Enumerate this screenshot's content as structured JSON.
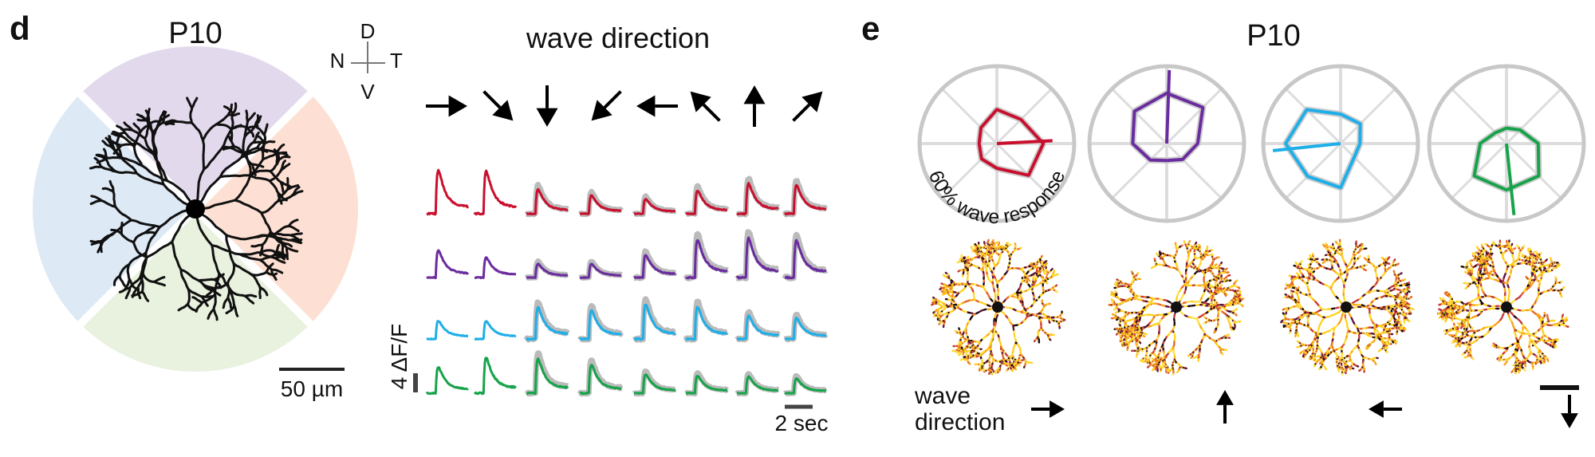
{
  "panel_d": {
    "letter": "d",
    "title": "P10",
    "compass": {
      "dorsal": "D",
      "nasal": "N",
      "temporal": "T",
      "ventral": "V"
    },
    "scale_bar_label": "50 µm",
    "wave_direction_title": "wave direction",
    "y_scale_label": "4 ΔF/F",
    "x_scale_label": "2 sec"
  },
  "panel_e": {
    "letter": "e",
    "title": "P10",
    "polar_label": "60% wave response",
    "wave_direction_label_line1": "wave",
    "wave_direction_label_line2": "direction"
  },
  "colors": {
    "temporal": "#c8102e",
    "dorsal": "#6a2c9e",
    "nasal": "#1eaee8",
    "ventral": "#17a34a",
    "wedge_dorsal": "#e3d9ec",
    "wedge_temporal": "#fde0d3",
    "wedge_ventral": "#e9f1df",
    "wedge_nasal": "#dde9f5"
  },
  "chart_data": [
    {
      "type": "line",
      "title": "wave direction",
      "directions": [
        "right",
        "down-right",
        "down",
        "down-left",
        "left",
        "up-left",
        "up",
        "up-right"
      ],
      "y_scale": {
        "value": 4,
        "unit": "ΔF/F"
      },
      "x_scale": {
        "value": 2,
        "unit": "sec"
      },
      "series": [
        {
          "name": "temporal",
          "color_key": "temporal",
          "peaks": [
            11.8,
            11.6,
            6.6,
            5.0,
            4.0,
            6.3,
            8.2,
            7.7
          ]
        },
        {
          "name": "dorsal",
          "color_key": "dorsal",
          "peaks": [
            7.3,
            5.4,
            3.7,
            3.7,
            6.1,
            10.3,
            10.7,
            10.1
          ]
        },
        {
          "name": "nasal",
          "color_key": "nasal",
          "peaks": [
            4.9,
            4.9,
            8.6,
            7.8,
            9.4,
            8.7,
            6.3,
            5.7
          ]
        },
        {
          "name": "ventral",
          "color_key": "ventral",
          "peaks": [
            7.1,
            9.7,
            9.4,
            7.7,
            5.1,
            4.7,
            4.5,
            4.0
          ]
        }
      ]
    },
    {
      "type": "polar",
      "title": "P10",
      "ring_label": "60% wave response",
      "angle_order": [
        "up",
        "up-right",
        "right",
        "down-right",
        "down",
        "down-left",
        "left",
        "up-left"
      ],
      "series": [
        {
          "name": "temporal",
          "color_key": "temporal",
          "radii": [
            0.44,
            0.44,
            0.6,
            0.58,
            0.32,
            0.28,
            0.23,
            0.29
          ],
          "vector": {
            "angle_deg": 3,
            "length": 0.72
          }
        },
        {
          "name": "dorsal",
          "color_key": "dorsal",
          "radii": [
            0.65,
            0.66,
            0.4,
            0.29,
            0.22,
            0.3,
            0.44,
            0.59
          ],
          "vector": {
            "angle_deg": 88,
            "length": 0.95
          }
        },
        {
          "name": "nasal",
          "color_key": "nasal",
          "radii": [
            0.38,
            0.36,
            0.25,
            0.25,
            0.57,
            0.6,
            0.71,
            0.62
          ],
          "vector": {
            "angle_deg": 186,
            "length": 0.88
          }
        },
        {
          "name": "ventral",
          "color_key": "ventral",
          "radii": [
            0.2,
            0.25,
            0.41,
            0.59,
            0.6,
            0.59,
            0.34,
            0.2
          ],
          "vector": {
            "angle_deg": -84,
            "length": 0.93
          }
        }
      ],
      "image_wave_directions": [
        "right",
        "up",
        "left",
        "down"
      ]
    }
  ]
}
